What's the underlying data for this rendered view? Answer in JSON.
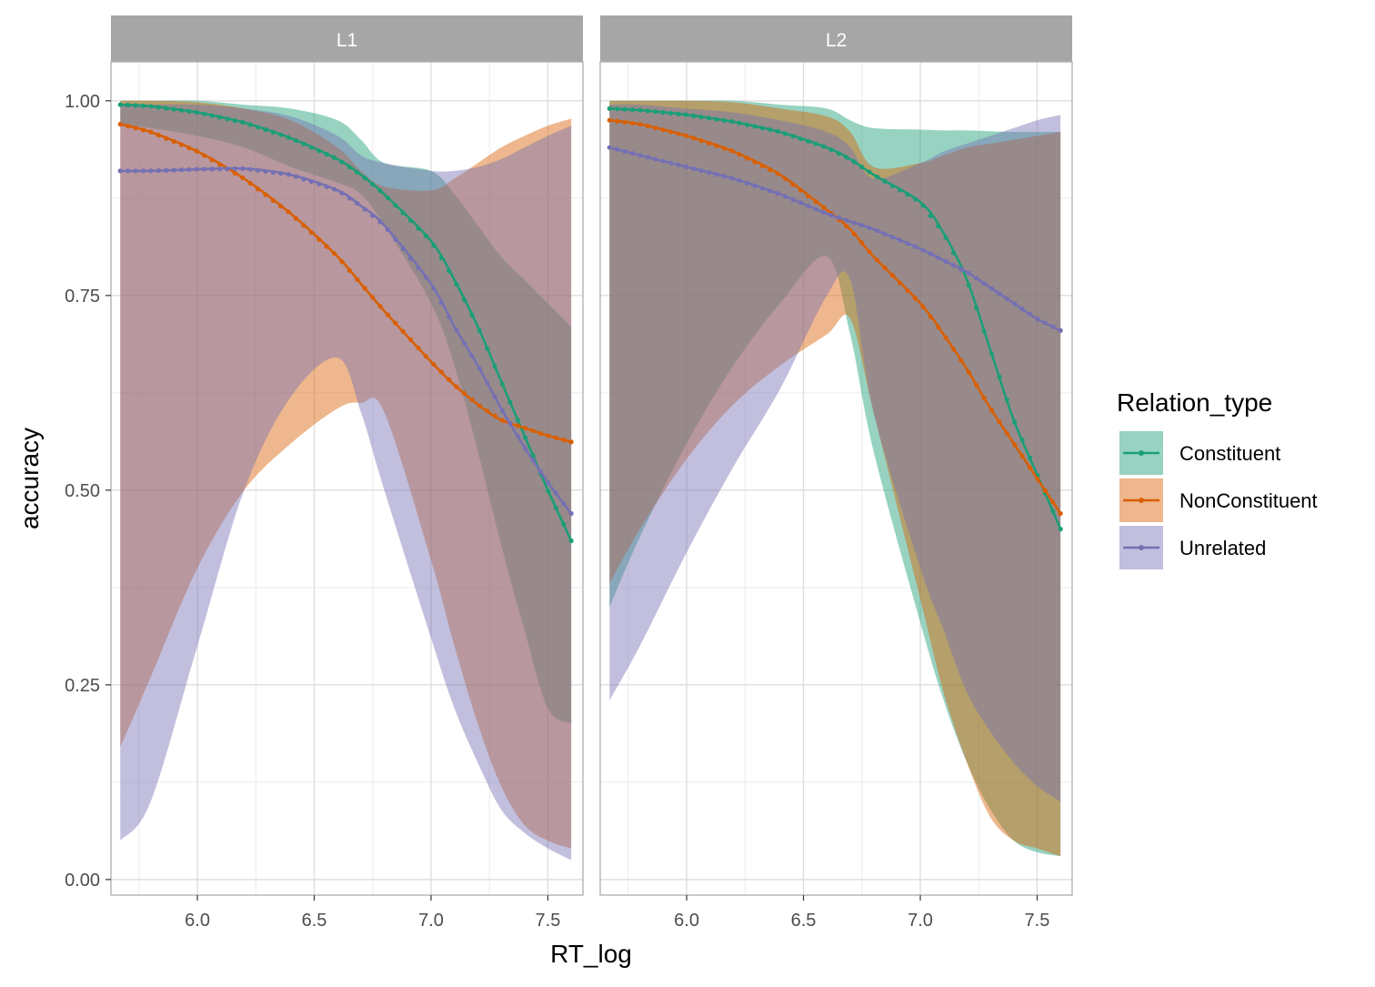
{
  "chart_data": {
    "type": "line",
    "xlabel": "RT_log",
    "ylabel": "accuracy",
    "xlim": [
      5.63,
      7.65
    ],
    "ylim": [
      -0.02,
      1.05
    ],
    "x_ticks": [
      6.0,
      6.5,
      7.0,
      7.5
    ],
    "x_tick_labels": [
      "6.0",
      "6.5",
      "7.0",
      "7.5"
    ],
    "y_ticks": [
      0.0,
      0.25,
      0.5,
      0.75,
      1.0
    ],
    "y_tick_labels": [
      "0.00",
      "0.25",
      "0.50",
      "0.75",
      "1.00"
    ],
    "grid": true,
    "legend": {
      "title": "Relation_type",
      "position": "right",
      "entries": [
        "Constituent",
        "NonConstituent",
        "Unrelated"
      ]
    },
    "series_colors": {
      "Constituent": "#1b9e77",
      "NonConstituent": "#d95f02",
      "Unrelated": "#7570b3"
    },
    "ribbon_opacity": 0.45,
    "panels": [
      {
        "label": "L1",
        "series": [
          {
            "name": "Constituent",
            "x": [
              5.67,
              5.8,
              6.0,
              6.2,
              6.4,
              6.6,
              6.7,
              6.8,
              7.0,
              7.1,
              7.2,
              7.3,
              7.4,
              7.5,
              7.6
            ],
            "y": [
              0.995,
              0.993,
              0.985,
              0.972,
              0.952,
              0.925,
              0.905,
              0.88,
              0.82,
              0.77,
              0.71,
              0.64,
              0.57,
              0.5,
              0.435
            ],
            "lower": [
              0.97,
              0.965,
              0.955,
              0.94,
              0.915,
              0.895,
              0.88,
              0.84,
              0.74,
              0.66,
              0.55,
              0.43,
              0.32,
              0.22,
              0.2
            ],
            "upper": [
              1.0,
              1.0,
              1.0,
              0.995,
              0.99,
              0.975,
              0.95,
              0.92,
              0.91,
              0.88,
              0.84,
              0.8,
              0.77,
              0.74,
              0.71
            ]
          },
          {
            "name": "NonConstituent",
            "x": [
              5.67,
              5.8,
              6.0,
              6.2,
              6.4,
              6.6,
              6.7,
              6.8,
              7.0,
              7.1,
              7.2,
              7.3,
              7.4,
              7.5,
              7.6
            ],
            "y": [
              0.97,
              0.96,
              0.935,
              0.9,
              0.855,
              0.8,
              0.765,
              0.73,
              0.665,
              0.635,
              0.61,
              0.59,
              0.58,
              0.57,
              0.562
            ],
            "lower": [
              0.17,
              0.26,
              0.4,
              0.5,
              0.56,
              0.605,
              0.612,
              0.6,
              0.41,
              0.3,
              0.2,
              0.12,
              0.07,
              0.05,
              0.04
            ],
            "upper": [
              1.0,
              1.0,
              0.998,
              0.99,
              0.975,
              0.94,
              0.91,
              0.89,
              0.885,
              0.9,
              0.92,
              0.94,
              0.955,
              0.968,
              0.977
            ]
          },
          {
            "name": "Unrelated",
            "x": [
              5.67,
              5.8,
              6.0,
              6.2,
              6.4,
              6.6,
              6.7,
              6.8,
              7.0,
              7.1,
              7.2,
              7.3,
              7.4,
              7.5,
              7.6
            ],
            "y": [
              0.91,
              0.91,
              0.912,
              0.913,
              0.905,
              0.885,
              0.865,
              0.84,
              0.765,
              0.71,
              0.66,
              0.605,
              0.555,
              0.51,
              0.47
            ],
            "lower": [
              0.05,
              0.1,
              0.3,
              0.5,
              0.62,
              0.67,
              0.6,
              0.5,
              0.31,
              0.22,
              0.15,
              0.09,
              0.06,
              0.04,
              0.025
            ],
            "upper": [
              0.995,
              0.995,
              0.995,
              0.99,
              0.98,
              0.955,
              0.93,
              0.92,
              0.91,
              0.91,
              0.915,
              0.925,
              0.94,
              0.955,
              0.968
            ]
          }
        ]
      },
      {
        "label": "L2",
        "series": [
          {
            "name": "Constituent",
            "x": [
              5.67,
              5.8,
              6.0,
              6.2,
              6.4,
              6.6,
              6.7,
              6.8,
              7.0,
              7.1,
              7.2,
              7.3,
              7.4,
              7.5,
              7.6
            ],
            "y": [
              0.99,
              0.988,
              0.982,
              0.973,
              0.96,
              0.94,
              0.925,
              0.905,
              0.87,
              0.83,
              0.77,
              0.68,
              0.59,
              0.52,
              0.45
            ],
            "lower": [
              0.35,
              0.44,
              0.56,
              0.66,
              0.74,
              0.8,
              0.7,
              0.55,
              0.33,
              0.23,
              0.15,
              0.09,
              0.05,
              0.035,
              0.03
            ],
            "upper": [
              1.0,
              1.0,
              1.0,
              1.0,
              0.995,
              0.99,
              0.975,
              0.965,
              0.963,
              0.962,
              0.962,
              0.961,
              0.96,
              0.96,
              0.96
            ]
          },
          {
            "name": "NonConstituent",
            "x": [
              5.67,
              5.8,
              6.0,
              6.2,
              6.4,
              6.6,
              6.7,
              6.8,
              7.0,
              7.1,
              7.2,
              7.3,
              7.4,
              7.5,
              7.6
            ],
            "y": [
              0.975,
              0.97,
              0.955,
              0.935,
              0.905,
              0.86,
              0.835,
              0.8,
              0.74,
              0.7,
              0.655,
              0.605,
              0.56,
              0.515,
              0.47
            ],
            "lower": [
              0.38,
              0.45,
              0.54,
              0.61,
              0.66,
              0.7,
              0.72,
              0.6,
              0.36,
              0.24,
              0.15,
              0.08,
              0.05,
              0.04,
              0.03
            ],
            "upper": [
              1.0,
              1.0,
              1.0,
              0.998,
              0.99,
              0.98,
              0.96,
              0.915,
              0.92,
              0.93,
              0.94,
              0.945,
              0.95,
              0.955,
              0.96
            ]
          },
          {
            "name": "Unrelated",
            "x": [
              5.67,
              5.8,
              6.0,
              6.2,
              6.4,
              6.6,
              6.7,
              6.8,
              7.0,
              7.1,
              7.2,
              7.3,
              7.4,
              7.5,
              7.6
            ],
            "y": [
              0.94,
              0.93,
              0.915,
              0.9,
              0.88,
              0.855,
              0.845,
              0.835,
              0.81,
              0.795,
              0.78,
              0.76,
              0.74,
              0.72,
              0.705
            ],
            "lower": [
              0.23,
              0.3,
              0.42,
              0.53,
              0.63,
              0.75,
              0.77,
              0.6,
              0.4,
              0.32,
              0.24,
              0.19,
              0.15,
              0.12,
              0.1
            ],
            "upper": [
              0.995,
              0.995,
              0.99,
              0.985,
              0.975,
              0.96,
              0.94,
              0.9,
              0.92,
              0.935,
              0.945,
              0.955,
              0.965,
              0.975,
              0.982
            ]
          }
        ]
      }
    ]
  }
}
